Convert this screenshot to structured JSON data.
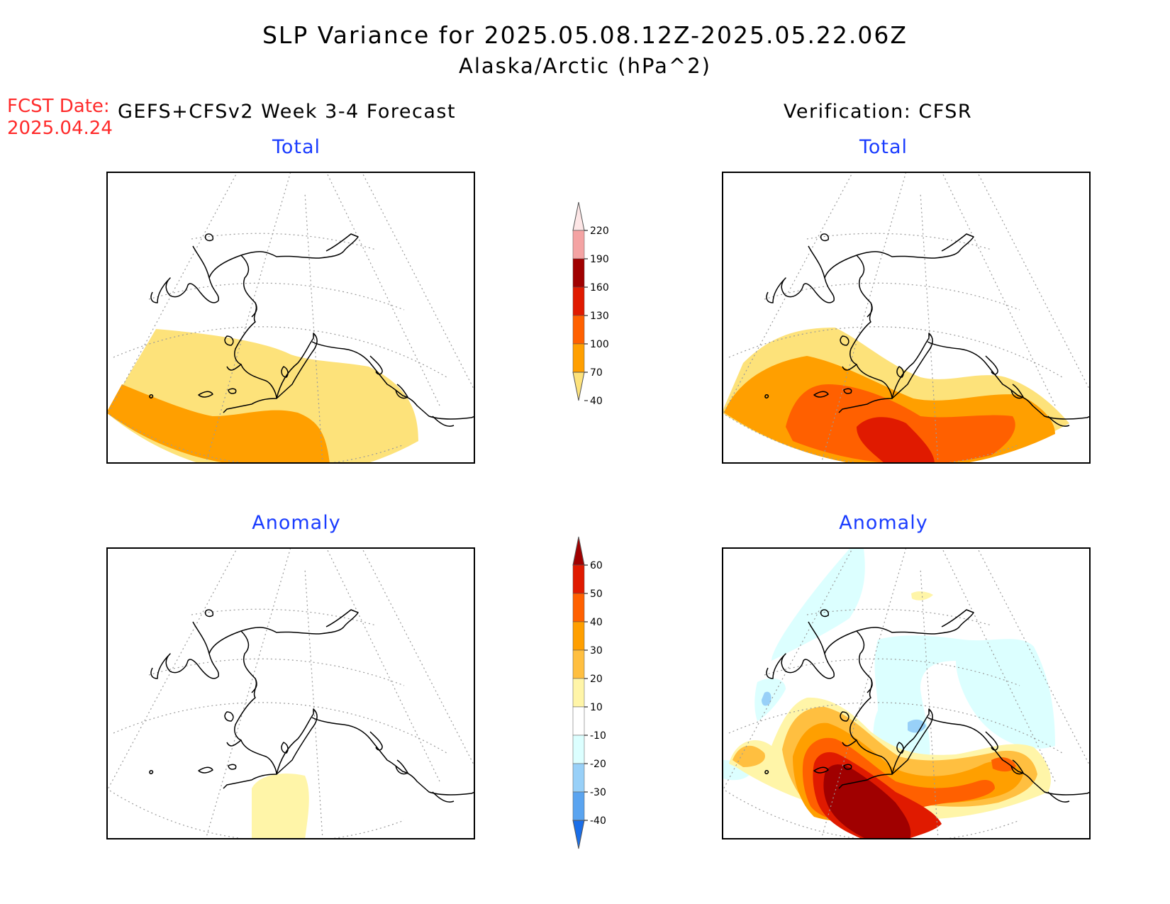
{
  "title": {
    "line1": "SLP Variance for 2025.05.08.12Z-2025.05.22.06Z",
    "line2": "Alaska/Arctic (hPa^2)"
  },
  "forecast_date": {
    "label": "FCST Date:",
    "value": "2025.04.24"
  },
  "left_column": {
    "header": "GEFS+CFSv2 Week 3-4 Forecast"
  },
  "right_column": {
    "header": "Verification: CFSR"
  },
  "panels": {
    "fcst_total": {
      "title": "Total"
    },
    "obs_total": {
      "title": "Total"
    },
    "fcst_anomaly": {
      "title": "Anomaly"
    },
    "obs_anomaly": {
      "title": "Anomaly"
    }
  },
  "colorbars": {
    "total": {
      "labels": [
        "220",
        "190",
        "160",
        "130",
        "100",
        "70",
        "40"
      ],
      "colors": [
        "#fde6e6",
        "#f4a3a3",
        "#a00000",
        "#e01a00",
        "#ff6000",
        "#ff9f00",
        "#fde27a"
      ]
    },
    "anomaly": {
      "labels": [
        "60",
        "50",
        "40",
        "30",
        "20",
        "10",
        "-10",
        "-20",
        "-30",
        "-40"
      ],
      "colors": [
        "#a00000",
        "#e01a00",
        "#ff6000",
        "#ff9f00",
        "#ffbf40",
        "#fff5a8",
        "#ffffff",
        "#dcffff",
        "#98d0f8",
        "#5aa4f0",
        "#1a6ee8"
      ]
    }
  },
  "shading_colors": {
    "c40": "#fde27a",
    "c70": "#ff9f00",
    "c100": "#ff6000",
    "c130": "#e01a00",
    "a10": "#fff5a8",
    "a20": "#ffbf40",
    "a30": "#ff9f00",
    "a40": "#ff6000",
    "a50": "#e01a00",
    "a60": "#a00000",
    "n10": "#dcffff",
    "n20": "#98d0f8",
    "n30": "#5aa4f0"
  }
}
